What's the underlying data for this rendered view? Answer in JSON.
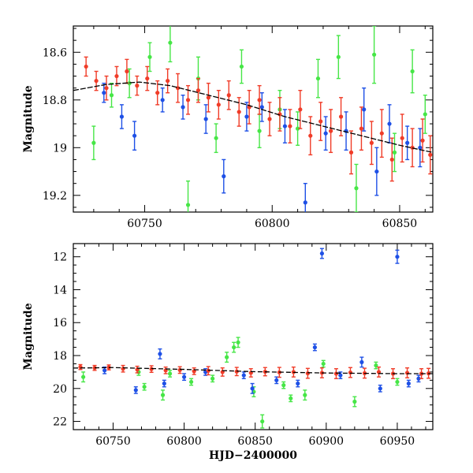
{
  "chart_data": [
    {
      "type": "scatter",
      "panel": "top",
      "title": "",
      "xlabel": "",
      "ylabel": "Magnitude",
      "xlim": [
        60722,
        60863
      ],
      "ylim": [
        19.27,
        18.49
      ],
      "y_inverted": true,
      "xticks": [
        60750,
        60800,
        60850
      ],
      "xtick_labels": [
        "60750",
        "60800",
        "60850"
      ],
      "yticks": [
        18.6,
        18.8,
        19.0,
        19.2
      ],
      "ytick_labels": [
        "18.6",
        "18.8",
        "19",
        "19.2"
      ],
      "colors": {
        "red": "#f03c28",
        "blue": "#1e50e6",
        "green": "#46e646",
        "model": "#000000"
      },
      "series": [
        {
          "name": "green",
          "color": "#46e646",
          "x": [
            60730,
            60737,
            60744,
            60752,
            60760,
            60767,
            60771,
            60778,
            60788,
            60795,
            60803,
            60810,
            60818,
            60826,
            60833,
            60840,
            60848,
            60855,
            60860
          ],
          "y": [
            18.98,
            18.78,
            18.73,
            18.62,
            18.56,
            19.24,
            18.71,
            18.96,
            18.66,
            18.93,
            18.84,
            18.92,
            18.71,
            18.62,
            19.17,
            18.61,
            19.02,
            18.68,
            18.86
          ],
          "err": [
            0.07,
            0.05,
            0.06,
            0.06,
            0.08,
            0.1,
            0.09,
            0.06,
            0.07,
            0.07,
            0.08,
            0.07,
            0.08,
            0.09,
            0.1,
            0.12,
            0.08,
            0.09,
            0.08
          ]
        },
        {
          "name": "blue",
          "color": "#1e50e6",
          "x": [
            60734,
            60741,
            60746,
            60757,
            60765,
            60774,
            60781,
            60790,
            60796,
            60805,
            60813,
            60821,
            60829,
            60836,
            60841,
            60846,
            60853,
            60858
          ],
          "y": [
            18.77,
            18.87,
            18.95,
            18.8,
            18.83,
            18.88,
            19.12,
            18.87,
            18.83,
            18.91,
            19.23,
            18.94,
            18.93,
            18.84,
            19.1,
            18.9,
            18.98,
            19.0
          ],
          "err": [
            0.04,
            0.05,
            0.06,
            0.05,
            0.05,
            0.06,
            0.07,
            0.06,
            0.06,
            0.07,
            0.08,
            0.07,
            0.08,
            0.09,
            0.1,
            0.08,
            0.07,
            0.08
          ]
        },
        {
          "name": "red",
          "color": "#f03c28",
          "x": [
            60727,
            60731,
            60735,
            60739,
            60743,
            60747,
            60751,
            60755,
            60759,
            60763,
            60767,
            60771,
            60775,
            60779,
            60783,
            60787,
            60791,
            60795,
            60799,
            60803,
            60807,
            60811,
            60815,
            60819,
            60823,
            60827,
            60831,
            60835,
            60839,
            60843,
            60847,
            60851,
            60855,
            60859,
            60862
          ],
          "y": [
            18.66,
            18.72,
            18.75,
            18.7,
            18.68,
            18.74,
            18.71,
            18.77,
            18.72,
            18.75,
            18.8,
            18.76,
            18.79,
            18.82,
            18.78,
            18.85,
            18.83,
            18.8,
            18.88,
            18.86,
            18.91,
            18.84,
            18.95,
            18.89,
            18.93,
            18.87,
            19.02,
            18.92,
            18.98,
            18.94,
            19.05,
            18.96,
            19.0,
            18.97,
            19.03
          ],
          "err": [
            0.04,
            0.04,
            0.05,
            0.04,
            0.05,
            0.04,
            0.05,
            0.05,
            0.05,
            0.06,
            0.06,
            0.05,
            0.06,
            0.06,
            0.06,
            0.06,
            0.07,
            0.06,
            0.07,
            0.07,
            0.07,
            0.08,
            0.08,
            0.08,
            0.09,
            0.08,
            0.09,
            0.09,
            0.09,
            0.1,
            0.09,
            0.1,
            0.08,
            0.09,
            0.08
          ]
        }
      ],
      "model": {
        "name": "model",
        "color": "#000000",
        "x": [
          60722,
          60735,
          60748,
          60760,
          60775,
          60790,
          60805,
          60820,
          60835,
          60850,
          60863
        ],
        "y": [
          18.76,
          18.735,
          18.725,
          18.74,
          18.78,
          18.82,
          18.87,
          18.91,
          18.95,
          18.99,
          19.02
        ]
      }
    },
    {
      "type": "scatter",
      "panel": "bottom",
      "title": "",
      "xlabel": "HJD−2400000",
      "ylabel": "Magnitude",
      "xlim": [
        60722,
        60975
      ],
      "ylim": [
        22.5,
        11.2
      ],
      "y_inverted": true,
      "xticks": [
        60750,
        60800,
        60850,
        60900,
        60950
      ],
      "xtick_labels": [
        "60750",
        "60800",
        "60850",
        "60900",
        "60950"
      ],
      "yticks": [
        12,
        14,
        16,
        18,
        20,
        22
      ],
      "ytick_labels": [
        "12",
        "14",
        "16",
        "18",
        "20",
        "22"
      ],
      "series": [
        {
          "name": "green",
          "color": "#46e646",
          "x": [
            60729,
            60768,
            60772,
            60785,
            60790,
            60805,
            60820,
            60830,
            60835,
            60838,
            60849,
            60855,
            60870,
            60875,
            60885,
            60898,
            60920,
            60935,
            60950
          ],
          "y": [
            19.3,
            19.0,
            19.9,
            20.4,
            19.1,
            19.6,
            19.4,
            18.1,
            17.5,
            17.2,
            20.2,
            22.0,
            19.8,
            20.6,
            20.4,
            18.5,
            20.8,
            18.6,
            19.6
          ],
          "err": [
            0.3,
            0.2,
            0.2,
            0.3,
            0.2,
            0.2,
            0.2,
            0.3,
            0.3,
            0.3,
            0.3,
            0.4,
            0.2,
            0.2,
            0.3,
            0.2,
            0.3,
            0.2,
            0.2
          ]
        },
        {
          "name": "blue",
          "color": "#1e50e6",
          "x": [
            60744,
            60766,
            60783,
            60786,
            60800,
            60815,
            60842,
            60848,
            60865,
            60880,
            60892,
            60897,
            60910,
            60925,
            60938,
            60950,
            60958,
            60965
          ],
          "y": [
            18.9,
            20.1,
            17.9,
            19.7,
            19.3,
            19.0,
            19.2,
            20.0,
            19.5,
            19.7,
            17.5,
            11.8,
            19.2,
            18.4,
            20.0,
            12.0,
            19.7,
            19.4
          ],
          "err": [
            0.2,
            0.2,
            0.3,
            0.2,
            0.2,
            0.2,
            0.2,
            0.3,
            0.2,
            0.2,
            0.2,
            0.3,
            0.2,
            0.3,
            0.2,
            0.4,
            0.2,
            0.2
          ]
        },
        {
          "name": "red",
          "color": "#f03c28",
          "x": [
            60727,
            60737,
            60747,
            60757,
            60767,
            60777,
            60787,
            60797,
            60807,
            60817,
            60827,
            60837,
            60847,
            60857,
            60867,
            60877,
            60887,
            60897,
            60907,
            60917,
            60927,
            60937,
            60947,
            60957,
            60967,
            60972
          ],
          "y": [
            18.7,
            18.75,
            18.72,
            18.8,
            18.85,
            18.82,
            18.9,
            18.88,
            18.95,
            18.92,
            19.0,
            18.97,
            19.05,
            18.98,
            19.02,
            19.0,
            19.08,
            19.05,
            19.1,
            19.03,
            19.07,
            19.0,
            19.1,
            19.05,
            19.1,
            19.08
          ],
          "err": [
            0.15,
            0.15,
            0.15,
            0.2,
            0.2,
            0.2,
            0.2,
            0.2,
            0.2,
            0.25,
            0.25,
            0.25,
            0.25,
            0.25,
            0.3,
            0.3,
            0.3,
            0.3,
            0.3,
            0.3,
            0.3,
            0.3,
            0.3,
            0.3,
            0.3,
            0.3
          ]
        }
      ],
      "model": {
        "name": "model",
        "color": "#000000",
        "x": [
          60722,
          60750,
          60800,
          60850,
          60900,
          60950,
          60975
        ],
        "y": [
          18.76,
          18.73,
          18.84,
          18.98,
          19.06,
          19.1,
          19.1
        ]
      }
    }
  ]
}
